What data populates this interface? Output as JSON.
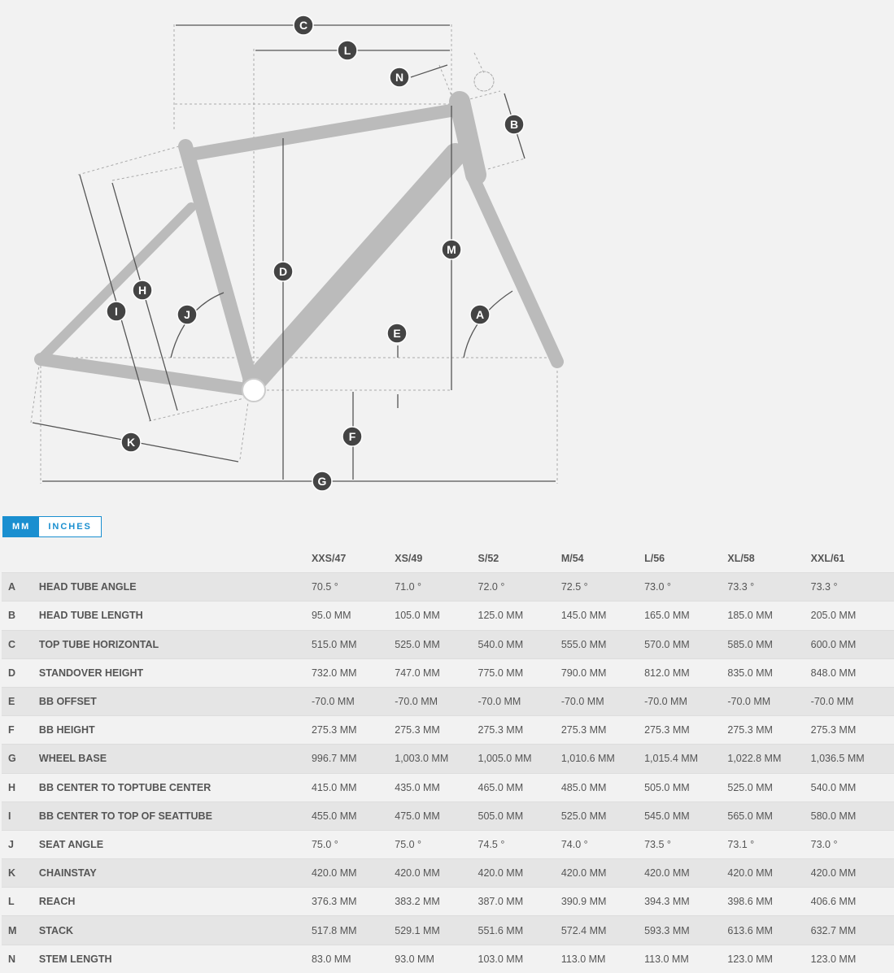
{
  "diagram": {
    "labels": [
      "A",
      "B",
      "C",
      "D",
      "E",
      "F",
      "G",
      "H",
      "I",
      "J",
      "K",
      "L",
      "M",
      "N"
    ]
  },
  "units": {
    "mm": "MM",
    "inches": "INCHES",
    "selected": "MM"
  },
  "table": {
    "sizes": [
      "XXS/47",
      "XS/49",
      "S/52",
      "M/54",
      "L/56",
      "XL/58",
      "XXL/61"
    ],
    "rows": [
      {
        "letter": "A",
        "name": "HEAD TUBE ANGLE",
        "values": [
          "70.5 °",
          "71.0 °",
          "72.0 °",
          "72.5 °",
          "73.0 °",
          "73.3 °",
          "73.3 °"
        ]
      },
      {
        "letter": "B",
        "name": "HEAD TUBE LENGTH",
        "values": [
          "95.0 MM",
          "105.0 MM",
          "125.0 MM",
          "145.0 MM",
          "165.0 MM",
          "185.0 MM",
          "205.0 MM"
        ]
      },
      {
        "letter": "C",
        "name": "TOP TUBE HORIZONTAL",
        "values": [
          "515.0 MM",
          "525.0 MM",
          "540.0 MM",
          "555.0 MM",
          "570.0 MM",
          "585.0 MM",
          "600.0 MM"
        ]
      },
      {
        "letter": "D",
        "name": "STANDOVER HEIGHT",
        "values": [
          "732.0 MM",
          "747.0 MM",
          "775.0 MM",
          "790.0 MM",
          "812.0 MM",
          "835.0 MM",
          "848.0 MM"
        ]
      },
      {
        "letter": "E",
        "name": "BB OFFSET",
        "values": [
          "-70.0 MM",
          "-70.0 MM",
          "-70.0 MM",
          "-70.0 MM",
          "-70.0 MM",
          "-70.0 MM",
          "-70.0 MM"
        ]
      },
      {
        "letter": "F",
        "name": "BB HEIGHT",
        "values": [
          "275.3 MM",
          "275.3 MM",
          "275.3 MM",
          "275.3 MM",
          "275.3 MM",
          "275.3 MM",
          "275.3 MM"
        ]
      },
      {
        "letter": "G",
        "name": "WHEEL BASE",
        "values": [
          "996.7 MM",
          "1,003.0 MM",
          "1,005.0 MM",
          "1,010.6 MM",
          "1,015.4 MM",
          "1,022.8 MM",
          "1,036.5 MM"
        ]
      },
      {
        "letter": "H",
        "name": "BB CENTER TO TOPTUBE CENTER",
        "values": [
          "415.0 MM",
          "435.0 MM",
          "465.0 MM",
          "485.0 MM",
          "505.0 MM",
          "525.0 MM",
          "540.0 MM"
        ]
      },
      {
        "letter": "I",
        "name": "BB CENTER TO TOP OF SEATTUBE",
        "values": [
          "455.0 MM",
          "475.0 MM",
          "505.0 MM",
          "525.0 MM",
          "545.0 MM",
          "565.0 MM",
          "580.0 MM"
        ]
      },
      {
        "letter": "J",
        "name": "SEAT ANGLE",
        "values": [
          "75.0 °",
          "75.0 °",
          "74.5 °",
          "74.0 °",
          "73.5 °",
          "73.1 °",
          "73.0 °"
        ]
      },
      {
        "letter": "K",
        "name": "CHAINSTAY",
        "values": [
          "420.0 MM",
          "420.0 MM",
          "420.0 MM",
          "420.0 MM",
          "420.0 MM",
          "420.0 MM",
          "420.0 MM"
        ]
      },
      {
        "letter": "L",
        "name": "REACH",
        "values": [
          "376.3 MM",
          "383.2 MM",
          "387.0 MM",
          "390.9 MM",
          "394.3 MM",
          "398.6 MM",
          "406.6 MM"
        ]
      },
      {
        "letter": "M",
        "name": "STACK",
        "values": [
          "517.8 MM",
          "529.1 MM",
          "551.6 MM",
          "572.4 MM",
          "593.3 MM",
          "613.6 MM",
          "632.7 MM"
        ]
      },
      {
        "letter": "N",
        "name": "STEM LENGTH",
        "values": [
          "83.0 MM",
          "93.0 MM",
          "103.0 MM",
          "113.0 MM",
          "113.0 MM",
          "123.0 MM",
          "123.0 MM"
        ]
      }
    ]
  }
}
